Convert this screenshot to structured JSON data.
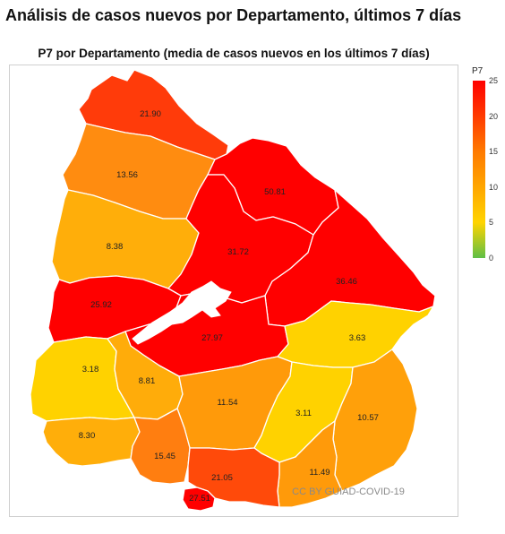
{
  "title": "Análisis de casos nuevos por Departamento, últimos 7 días",
  "subtitle": "P7 por Departamento (media de casos nuevos en los últimos 7 días)",
  "legend": {
    "title": "P7",
    "ticks": [
      "25",
      "20",
      "15",
      "10",
      "5",
      "0"
    ],
    "tick_values": [
      25,
      20,
      15,
      10,
      5,
      0
    ],
    "colors": {
      "25": "#ff0000",
      "20": "#ff3a00",
      "15": "#ff7a00",
      "10": "#ffa600",
      "5": "#ffd400",
      "0": "#5fbf46"
    }
  },
  "watermark": "CC BY GUIAD-COVID-19",
  "departments": [
    {
      "label": "21.90",
      "value": 21.9,
      "color": "#ff3b0a"
    },
    {
      "label": "13.56",
      "value": 13.56,
      "color": "#ff8c10"
    },
    {
      "label": "50.81",
      "value": 50.81,
      "color": "#ff0000"
    },
    {
      "label": "8.38",
      "value": 8.38,
      "color": "#ffae0a"
    },
    {
      "label": "31.72",
      "value": 31.72,
      "color": "#ff0000"
    },
    {
      "label": "36.46",
      "value": 36.46,
      "color": "#ff0000"
    },
    {
      "label": "25.92",
      "value": 25.92,
      "color": "#ff0000"
    },
    {
      "label": "27.97",
      "value": 27.97,
      "color": "#ff0000"
    },
    {
      "label": "3.63",
      "value": 3.63,
      "color": "#ffd200"
    },
    {
      "label": "3.18",
      "value": 3.18,
      "color": "#ffd200"
    },
    {
      "label": "8.81",
      "value": 8.81,
      "color": "#ffac0a"
    },
    {
      "label": "11.54",
      "value": 11.54,
      "color": "#ff9a0a"
    },
    {
      "label": "3.11",
      "value": 3.11,
      "color": "#ffd200"
    },
    {
      "label": "10.57",
      "value": 10.57,
      "color": "#ffa00a"
    },
    {
      "label": "8.30",
      "value": 8.3,
      "color": "#ffae0a"
    },
    {
      "label": "15.45",
      "value": 15.45,
      "color": "#ff7e10"
    },
    {
      "label": "11.49",
      "value": 11.49,
      "color": "#ff9a0a"
    },
    {
      "label": "21.05",
      "value": 21.05,
      "color": "#ff4a0a"
    },
    {
      "label": "27.51",
      "value": 27.51,
      "color": "#ff0000"
    }
  ]
}
